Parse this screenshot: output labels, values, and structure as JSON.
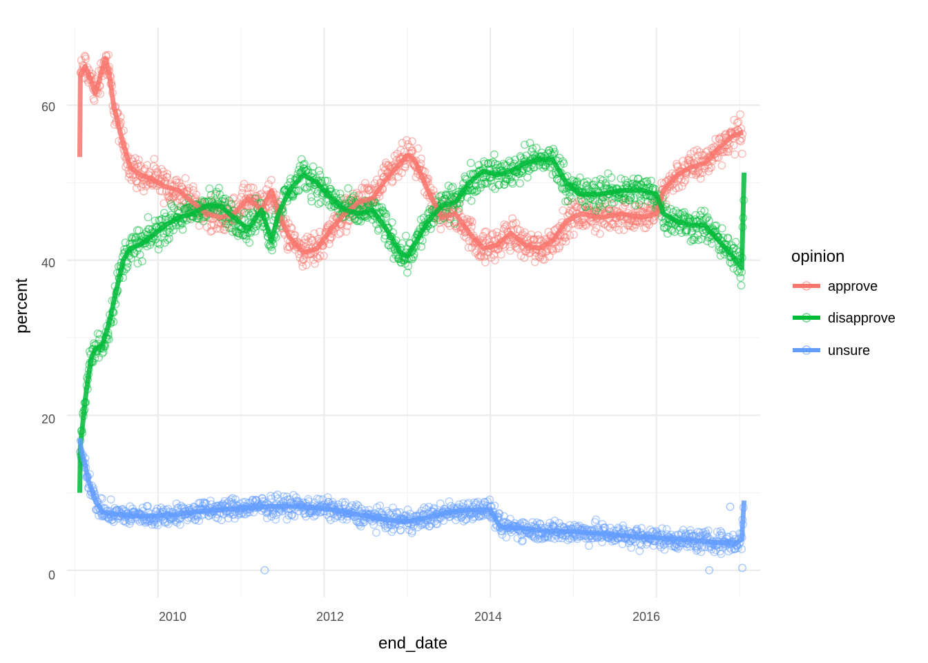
{
  "chart_data": {
    "type": "scatter",
    "title": "",
    "xlabel": "end_date",
    "ylabel": "percent",
    "x_ticks": [
      "2010",
      "2012",
      "2014",
      "2016"
    ],
    "y_ticks": [
      "0",
      "20",
      "40",
      "60"
    ],
    "xlim": [
      "2008-11-27",
      "2017-04-01"
    ],
    "ylim": [
      -3.5,
      70
    ],
    "grid": true,
    "legend": {
      "title": "opinion",
      "position": "right",
      "entries": [
        "approve",
        "disapprove",
        "unsure"
      ]
    },
    "series": [
      {
        "name": "approve",
        "color": "#F8766D",
        "trend": [
          [
            "2009-01-22",
            53.3
          ],
          [
            "2009-01-25",
            64
          ],
          [
            "2009-02-15",
            65
          ],
          [
            "2009-03-15",
            63
          ],
          [
            "2009-04-01",
            61.5
          ],
          [
            "2009-04-25",
            64
          ],
          [
            "2009-05-15",
            66
          ],
          [
            "2009-06-01",
            64
          ],
          [
            "2009-06-20",
            60
          ],
          [
            "2009-07-15",
            57
          ],
          [
            "2009-08-01",
            55
          ],
          [
            "2009-09-01",
            52
          ],
          [
            "2009-10-15",
            51
          ],
          [
            "2009-12-01",
            50.5
          ],
          [
            "2010-02-01",
            49.5
          ],
          [
            "2010-04-01",
            49
          ],
          [
            "2010-06-01",
            47.5
          ],
          [
            "2010-08-01",
            46
          ],
          [
            "2010-10-01",
            45.5
          ],
          [
            "2010-12-01",
            46
          ],
          [
            "2011-02-01",
            48
          ],
          [
            "2011-04-01",
            46.5
          ],
          [
            "2011-05-15",
            49
          ],
          [
            "2011-06-15",
            46
          ],
          [
            "2011-08-01",
            43
          ],
          [
            "2011-10-01",
            41
          ],
          [
            "2011-12-01",
            41.5
          ],
          [
            "2012-02-01",
            44
          ],
          [
            "2012-04-01",
            46
          ],
          [
            "2012-06-01",
            47.5
          ],
          [
            "2012-08-01",
            48
          ],
          [
            "2012-10-01",
            50.5
          ],
          [
            "2012-12-01",
            52.5
          ],
          [
            "2013-01-01",
            53.5
          ],
          [
            "2013-02-01",
            53
          ],
          [
            "2013-04-01",
            49
          ],
          [
            "2013-06-01",
            45.5
          ],
          [
            "2013-08-01",
            46
          ],
          [
            "2013-10-01",
            43.5
          ],
          [
            "2013-12-01",
            41.5
          ],
          [
            "2014-02-01",
            42
          ],
          [
            "2014-04-01",
            43.5
          ],
          [
            "2014-06-01",
            42
          ],
          [
            "2014-08-01",
            41.5
          ],
          [
            "2014-10-01",
            42.5
          ],
          [
            "2014-12-01",
            45
          ],
          [
            "2015-02-01",
            46
          ],
          [
            "2015-05-01",
            45.5
          ],
          [
            "2015-08-01",
            46
          ],
          [
            "2015-11-01",
            45.5
          ],
          [
            "2016-01-01",
            46
          ],
          [
            "2016-02-01",
            49
          ],
          [
            "2016-04-01",
            51
          ],
          [
            "2016-06-01",
            52
          ],
          [
            "2016-08-01",
            52.5
          ],
          [
            "2016-10-01",
            54.5
          ],
          [
            "2016-12-01",
            56
          ],
          [
            "2017-01-15",
            56.5
          ]
        ]
      },
      {
        "name": "disapprove",
        "color": "#00BA38",
        "trend": [
          [
            "2009-01-22",
            10
          ],
          [
            "2009-01-25",
            16
          ],
          [
            "2009-02-01",
            18
          ],
          [
            "2009-02-15",
            22
          ],
          [
            "2009-03-01",
            25
          ],
          [
            "2009-03-15",
            27.5
          ],
          [
            "2009-04-01",
            28.5
          ],
          [
            "2009-05-01",
            29
          ],
          [
            "2009-06-01",
            32
          ],
          [
            "2009-07-01",
            36
          ],
          [
            "2009-08-01",
            40
          ],
          [
            "2009-09-01",
            41.5
          ],
          [
            "2009-10-15",
            42
          ],
          [
            "2009-12-01",
            43
          ],
          [
            "2010-02-01",
            44.5
          ],
          [
            "2010-04-01",
            45.5
          ],
          [
            "2010-06-01",
            46
          ],
          [
            "2010-08-01",
            47
          ],
          [
            "2010-10-01",
            47
          ],
          [
            "2010-12-01",
            45.5
          ],
          [
            "2011-02-01",
            44
          ],
          [
            "2011-04-01",
            46.5
          ],
          [
            "2011-05-15",
            42.5
          ],
          [
            "2011-06-15",
            46
          ],
          [
            "2011-08-01",
            49
          ],
          [
            "2011-10-01",
            51
          ],
          [
            "2011-12-01",
            50
          ],
          [
            "2012-02-01",
            48
          ],
          [
            "2012-04-01",
            46.5
          ],
          [
            "2012-06-01",
            46
          ],
          [
            "2012-08-01",
            46.5
          ],
          [
            "2012-10-01",
            44
          ],
          [
            "2012-12-01",
            41
          ],
          [
            "2013-01-01",
            40.5
          ],
          [
            "2013-02-01",
            42
          ],
          [
            "2013-04-01",
            45
          ],
          [
            "2013-06-01",
            47
          ],
          [
            "2013-08-01",
            47.5
          ],
          [
            "2013-10-01",
            50
          ],
          [
            "2013-12-01",
            51.5
          ],
          [
            "2014-02-01",
            51
          ],
          [
            "2014-04-01",
            51.5
          ],
          [
            "2014-06-01",
            52.5
          ],
          [
            "2014-08-01",
            53
          ],
          [
            "2014-10-01",
            53
          ],
          [
            "2014-12-01",
            50
          ],
          [
            "2015-02-01",
            48.5
          ],
          [
            "2015-05-01",
            48.5
          ],
          [
            "2015-08-01",
            49
          ],
          [
            "2015-11-01",
            49
          ],
          [
            "2016-01-01",
            48.5
          ],
          [
            "2016-02-01",
            46
          ],
          [
            "2016-04-01",
            45
          ],
          [
            "2016-06-01",
            44.5
          ],
          [
            "2016-08-01",
            44.5
          ],
          [
            "2016-10-01",
            42.5
          ],
          [
            "2016-12-01",
            40.5
          ],
          [
            "2017-01-10",
            39
          ],
          [
            "2017-01-20",
            51.3
          ]
        ]
      },
      {
        "name": "unsure",
        "color": "#619CFF",
        "trend": [
          [
            "2009-01-22",
            17
          ],
          [
            "2009-02-01",
            15
          ],
          [
            "2009-02-15",
            13.5
          ],
          [
            "2009-03-01",
            11.5
          ],
          [
            "2009-03-15",
            10.5
          ],
          [
            "2009-04-01",
            9
          ],
          [
            "2009-05-01",
            7.5
          ],
          [
            "2009-07-01",
            7.2
          ],
          [
            "2009-10-01",
            7
          ],
          [
            "2010-01-01",
            7
          ],
          [
            "2010-04-01",
            7.2
          ],
          [
            "2010-07-01",
            7.6
          ],
          [
            "2010-10-01",
            7.8
          ],
          [
            "2011-01-01",
            8
          ],
          [
            "2011-04-01",
            8.2
          ],
          [
            "2011-07-01",
            8.3
          ],
          [
            "2011-10-01",
            8.2
          ],
          [
            "2012-01-01",
            8
          ],
          [
            "2012-04-01",
            7.5
          ],
          [
            "2012-07-01",
            7
          ],
          [
            "2012-10-01",
            6.5
          ],
          [
            "2013-01-01",
            6.3
          ],
          [
            "2013-04-01",
            6.8
          ],
          [
            "2013-07-01",
            7.5
          ],
          [
            "2013-10-01",
            7.8
          ],
          [
            "2014-01-01",
            7.8
          ],
          [
            "2014-02-15",
            5.5
          ],
          [
            "2014-04-01",
            5.5
          ],
          [
            "2014-07-01",
            5.3
          ],
          [
            "2014-10-01",
            5
          ],
          [
            "2015-01-01",
            5
          ],
          [
            "2015-04-01",
            4.8
          ],
          [
            "2015-07-01",
            4.6
          ],
          [
            "2015-10-01",
            4.3
          ],
          [
            "2016-01-01",
            4.2
          ],
          [
            "2016-04-01",
            4
          ],
          [
            "2016-07-01",
            3.8
          ],
          [
            "2016-10-01",
            3.6
          ],
          [
            "2016-12-15",
            3.5
          ],
          [
            "2017-01-10",
            4
          ],
          [
            "2017-01-20",
            9
          ]
        ],
        "outliers": [
          [
            "2011-04-15",
            0
          ],
          [
            "2016-08-20",
            0
          ],
          [
            "2017-01-12",
            0.3
          ],
          [
            "2016-11-20",
            8.2
          ]
        ]
      }
    ]
  }
}
